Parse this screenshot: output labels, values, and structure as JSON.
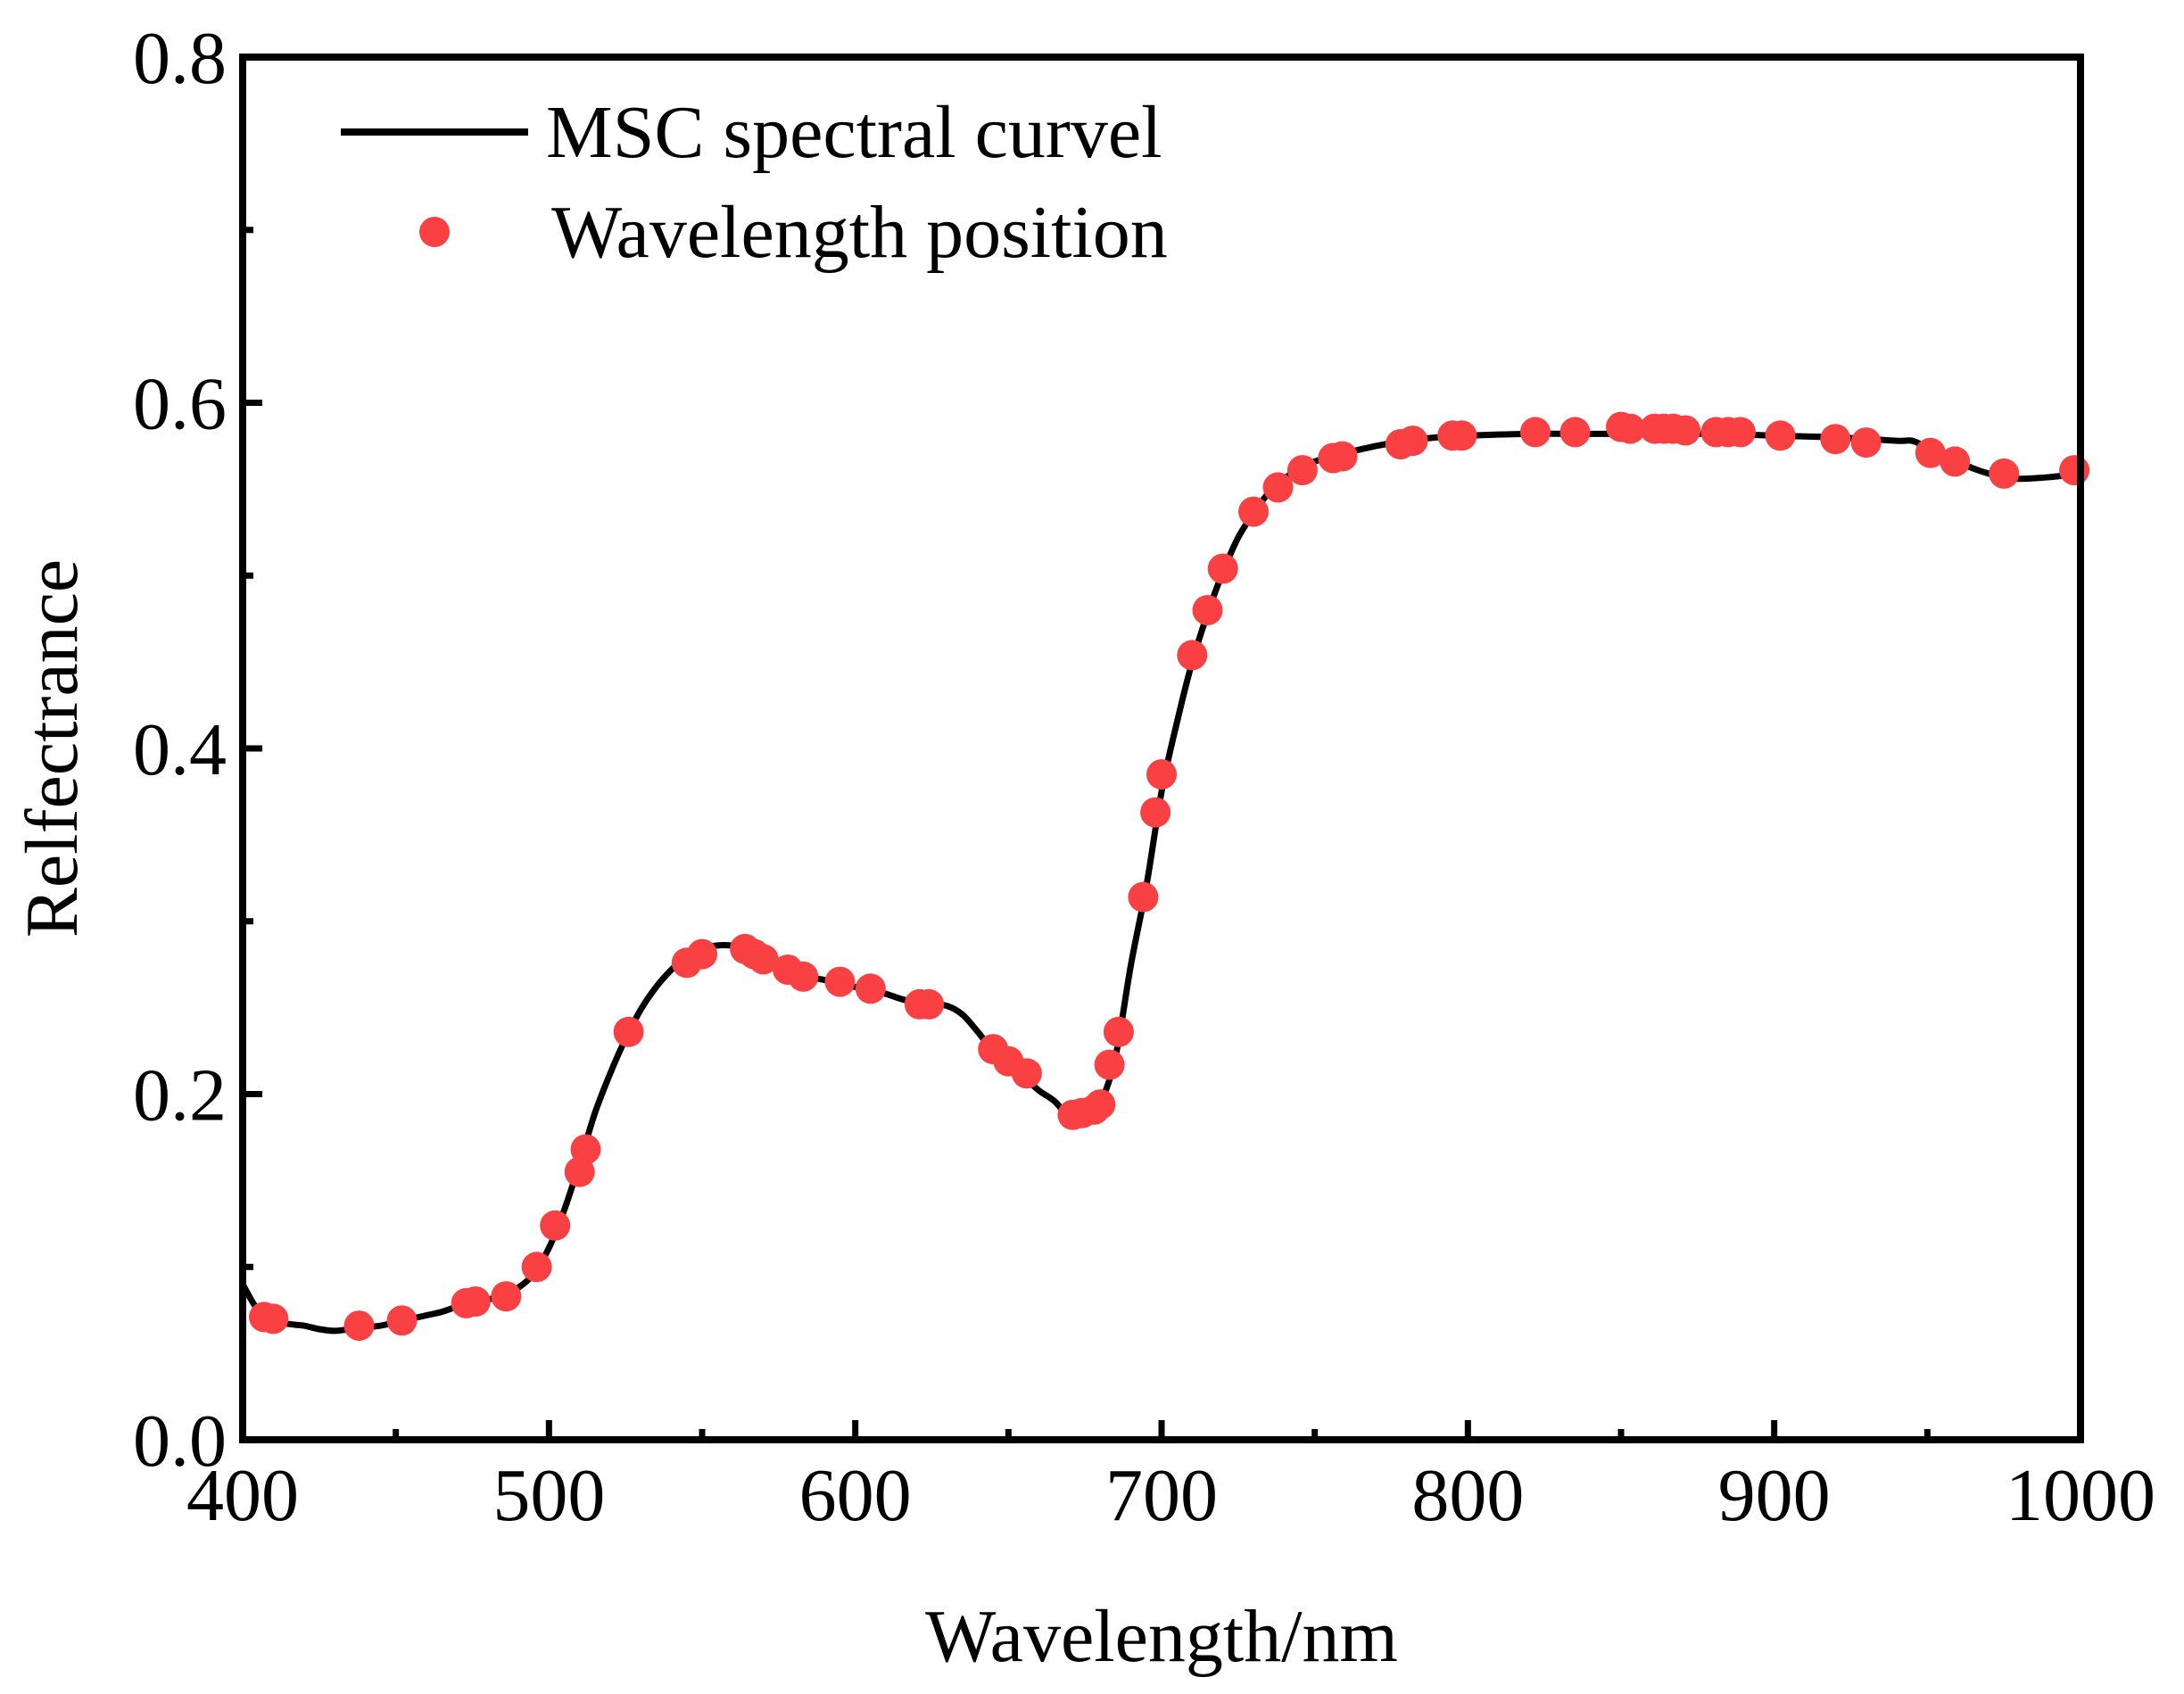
{
  "chart_data": {
    "type": "line",
    "title": "",
    "xlabel": "Wavelength/nm",
    "ylabel": "Relfectrance",
    "xlim": [
      400,
      1000
    ],
    "ylim": [
      0.0,
      0.8
    ],
    "x_ticks": [
      400,
      500,
      600,
      700,
      800,
      900,
      1000
    ],
    "x_tick_labels": [
      "400",
      "500",
      "600",
      "700",
      "800",
      "900",
      "1000"
    ],
    "x_minor_ticks": [
      450,
      550,
      650,
      750,
      850,
      950
    ],
    "y_ticks": [
      0.0,
      0.2,
      0.4,
      0.6,
      0.8
    ],
    "y_tick_labels": [
      "0.0",
      "0.2",
      "0.4",
      "0.6",
      "0.8"
    ],
    "y_minor_ticks": [
      0.1,
      0.3,
      0.5,
      0.7
    ],
    "grid": false,
    "legend_position": "top-left",
    "colors": {
      "curve": "#000000",
      "markers": "#f94144"
    },
    "series": [
      {
        "name": "MSC spectral curvel",
        "kind": "line",
        "x": [
          400,
          405,
          410,
          415,
          420,
          425,
          430,
          435,
          440,
          445,
          450,
          455,
          460,
          465,
          470,
          475,
          480,
          485,
          490,
          495,
          500,
          505,
          510,
          515,
          520,
          525,
          530,
          535,
          540,
          545,
          550,
          555,
          560,
          565,
          570,
          575,
          580,
          585,
          590,
          595,
          600,
          605,
          610,
          615,
          620,
          625,
          630,
          635,
          640,
          645,
          650,
          655,
          660,
          665,
          670,
          675,
          680,
          685,
          690,
          695,
          700,
          705,
          710,
          715,
          720,
          725,
          730,
          735,
          740,
          745,
          750,
          755,
          760,
          770,
          780,
          790,
          800,
          820,
          840,
          860,
          880,
          900,
          920,
          940,
          945,
          950,
          955,
          960,
          965,
          970,
          975,
          980,
          990,
          1000
        ],
        "y": [
          0.09,
          0.075,
          0.069,
          0.067,
          0.066,
          0.064,
          0.063,
          0.064,
          0.065,
          0.066,
          0.068,
          0.07,
          0.072,
          0.074,
          0.077,
          0.079,
          0.081,
          0.084,
          0.088,
          0.096,
          0.111,
          0.133,
          0.16,
          0.189,
          0.212,
          0.232,
          0.249,
          0.262,
          0.272,
          0.28,
          0.284,
          0.286,
          0.286,
          0.285,
          0.281,
          0.276,
          0.272,
          0.268,
          0.266,
          0.264,
          0.262,
          0.26,
          0.258,
          0.255,
          0.253,
          0.252,
          0.251,
          0.246,
          0.236,
          0.225,
          0.218,
          0.21,
          0.202,
          0.196,
          0.187,
          0.188,
          0.195,
          0.222,
          0.275,
          0.32,
          0.375,
          0.415,
          0.45,
          0.478,
          0.502,
          0.522,
          0.536,
          0.548,
          0.556,
          0.562,
          0.566,
          0.569,
          0.571,
          0.575,
          0.578,
          0.58,
          0.581,
          0.582,
          0.582,
          0.582,
          0.582,
          0.581,
          0.58,
          0.578,
          0.578,
          0.574,
          0.57,
          0.566,
          0.562,
          0.559,
          0.557,
          0.556,
          0.557,
          0.559
        ]
      },
      {
        "name": "Wavelength position",
        "kind": "scatter",
        "x": [
          407,
          410,
          438,
          452,
          473,
          476,
          486,
          496,
          502,
          510,
          512,
          526,
          545,
          550,
          564,
          567,
          570,
          578,
          583,
          595,
          605,
          621,
          624,
          645,
          650,
          656,
          671,
          674,
          678,
          680,
          683,
          686,
          694,
          698,
          700,
          710,
          715,
          720,
          730,
          738,
          746,
          756,
          759,
          778,
          782,
          795,
          798,
          822,
          835,
          850,
          853,
          861,
          864,
          867,
          871,
          881,
          885,
          889,
          902,
          920,
          930,
          951,
          959,
          975,
          998
        ],
        "y": [
          0.071,
          0.07,
          0.066,
          0.069,
          0.079,
          0.08,
          0.083,
          0.1,
          0.124,
          0.155,
          0.168,
          0.236,
          0.276,
          0.281,
          0.284,
          0.281,
          0.278,
          0.272,
          0.268,
          0.265,
          0.261,
          0.252,
          0.252,
          0.226,
          0.219,
          0.212,
          0.188,
          0.189,
          0.191,
          0.194,
          0.217,
          0.236,
          0.314,
          0.363,
          0.385,
          0.454,
          0.48,
          0.504,
          0.537,
          0.551,
          0.561,
          0.568,
          0.569,
          0.576,
          0.578,
          0.581,
          0.581,
          0.583,
          0.583,
          0.586,
          0.585,
          0.585,
          0.585,
          0.585,
          0.584,
          0.583,
          0.583,
          0.583,
          0.581,
          0.579,
          0.577,
          0.571,
          0.566,
          0.559,
          0.561
        ]
      }
    ]
  }
}
